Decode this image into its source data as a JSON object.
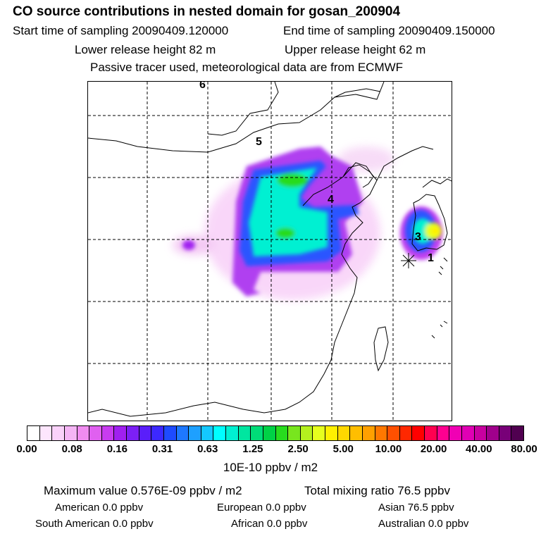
{
  "header": {
    "title": "CO  source contributions in nested domain for gosan_200904",
    "start_label": "Start time of sampling 20090409.120000",
    "end_label": "End time of sampling 20090409.150000",
    "lower_label": "Lower release height   82 m",
    "upper_label": "Upper release height   62 m",
    "info": "Passive tracer used, meteorological data are from ECMWF"
  },
  "map": {
    "labels": {
      "l1": "1",
      "l3": "3",
      "l4": "4",
      "l5": "5",
      "l6": "6"
    }
  },
  "colorbar": {
    "colors": [
      "#ffffff",
      "#fde6fd",
      "#fad2fa",
      "#f5b5f5",
      "#f08cf0",
      "#e060f0",
      "#c83cf0",
      "#a020f0",
      "#7c20f5",
      "#5a1efa",
      "#3c28ff",
      "#1e4bff",
      "#1e78ff",
      "#1ea0ff",
      "#14c8ff",
      "#00ffff",
      "#00f0d2",
      "#00e6a0",
      "#00dc78",
      "#00d246",
      "#28dc1e",
      "#78e61e",
      "#b4f01e",
      "#e6ff1e",
      "#fff000",
      "#ffd700",
      "#ffbe00",
      "#ffa000",
      "#ff7800",
      "#ff5000",
      "#ff2800",
      "#ff0000",
      "#ff0050",
      "#ff0090",
      "#f000b4",
      "#e000b4",
      "#c800a0",
      "#a0008c",
      "#780078",
      "#500050"
    ],
    "ticks": [
      "0.00",
      "0.08",
      "0.16",
      "0.31",
      "0.63",
      "1.25",
      "2.50",
      "5.00",
      "10.00",
      "20.00",
      "40.00",
      "80.00"
    ],
    "units": "10E-10 ppbv / m2"
  },
  "footer": {
    "max_value": "Maximum value  0.576E-09 ppbv / m2",
    "total_mixing": "Total mixing ratio       76.5 ppbv",
    "american": "American        0.0 ppbv",
    "european": "European        0.0 ppbv",
    "asian": "Asian      76.5 ppbv",
    "south_american": "South American        0.0 ppbv",
    "african": "African        0.0 ppbv",
    "australian": "Australian        0.0 ppbv"
  }
}
